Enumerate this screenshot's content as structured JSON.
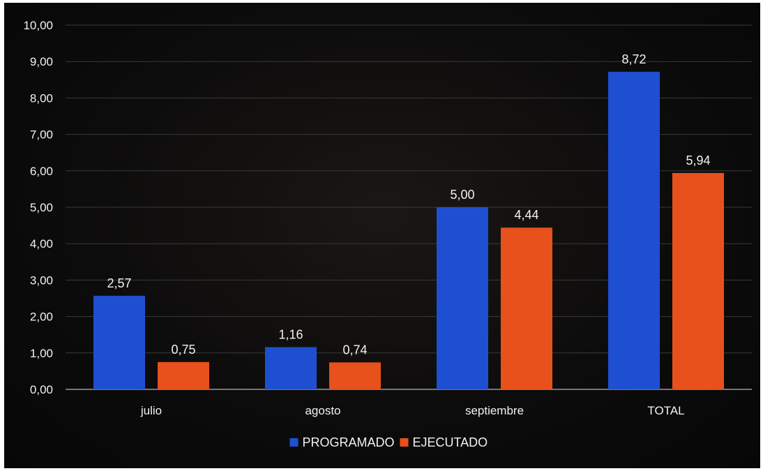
{
  "chart_data": {
    "type": "bar",
    "categories": [
      "julio",
      "agosto",
      "septiembre",
      "TOTAL"
    ],
    "series": [
      {
        "name": "PROGRAMADO",
        "color": "#1f4fd1",
        "values": [
          2.57,
          1.16,
          5.0,
          8.72
        ],
        "labels": [
          "2,57",
          "1,16",
          "5,00",
          "8,72"
        ]
      },
      {
        "name": "EJECUTADO",
        "color": "#e8501c",
        "values": [
          0.75,
          0.74,
          4.44,
          5.94
        ],
        "labels": [
          "0,75",
          "0,74",
          "4,44",
          "5,94"
        ]
      }
    ],
    "ylim": [
      0,
      10
    ],
    "yticks": [
      "0,00",
      "1,00",
      "2,00",
      "3,00",
      "4,00",
      "5,00",
      "6,00",
      "7,00",
      "8,00",
      "9,00",
      "10,00"
    ],
    "grid": true,
    "legend_position": "bottom-center",
    "title": "",
    "xlabel": "",
    "ylabel": ""
  }
}
